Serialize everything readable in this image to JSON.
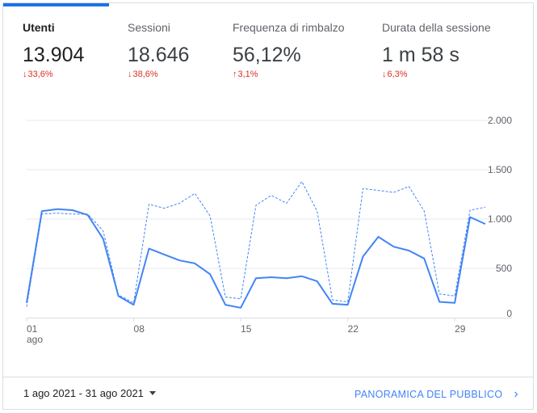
{
  "metrics": [
    {
      "label": "Utenti",
      "value": "13.904",
      "change": "33,6%",
      "direction": "down"
    },
    {
      "label": "Sessioni",
      "value": "18.646",
      "change": "38,6%",
      "direction": "down"
    },
    {
      "label": "Frequenza di rimbalzo",
      "value": "56,12%",
      "change": "3,1%",
      "direction": "up"
    },
    {
      "label": "Durata della sessione",
      "value": "1 m 58 s",
      "change": "6,3%",
      "direction": "down"
    }
  ],
  "icons": {
    "down": "arrow-down-icon",
    "up": "arrow-up-icon",
    "dropdown": "caret-down-icon",
    "next": "chevron-right-icon"
  },
  "colors": {
    "accent": "#1a73e8",
    "line": "#4285f4",
    "negative": "#d93025"
  },
  "footer": {
    "date_range": "1 ago 2021 - 31 ago 2021",
    "overview_link": "PANORAMICA DEL PUBBLICO"
  },
  "chart_data": {
    "type": "line",
    "x": [
      1,
      2,
      3,
      4,
      5,
      6,
      7,
      8,
      9,
      10,
      11,
      12,
      13,
      14,
      15,
      16,
      17,
      18,
      19,
      20,
      21,
      22,
      23,
      24,
      25,
      26,
      27,
      28,
      29,
      30,
      31
    ],
    "x_tick_labels": [
      {
        "x": 1,
        "line1": "01",
        "line2": "ago"
      },
      {
        "x": 8,
        "line1": "08",
        "line2": ""
      },
      {
        "x": 15,
        "line1": "15",
        "line2": ""
      },
      {
        "x": 22,
        "line1": "22",
        "line2": ""
      },
      {
        "x": 29,
        "line1": "29",
        "line2": ""
      }
    ],
    "y_ticks": [
      0,
      500,
      1000,
      1500,
      2000
    ],
    "y_tick_labels": [
      "0",
      "500",
      "1.000",
      "1.500",
      "2.000"
    ],
    "ylim": [
      0,
      2000
    ],
    "grid": true,
    "series": [
      {
        "style": "solid",
        "values": [
          150,
          1080,
          1100,
          1090,
          1040,
          800,
          220,
          130,
          700,
          640,
          580,
          550,
          440,
          130,
          100,
          400,
          410,
          400,
          420,
          370,
          140,
          130,
          620,
          820,
          720,
          680,
          600,
          160,
          150,
          1020,
          950
        ]
      },
      {
        "style": "dashed",
        "values": [
          110,
          1050,
          1060,
          1050,
          1050,
          880,
          230,
          150,
          1150,
          1110,
          1160,
          1260,
          1030,
          210,
          190,
          1140,
          1240,
          1160,
          1380,
          1080,
          180,
          160,
          1310,
          1290,
          1270,
          1330,
          1080,
          240,
          220,
          1090,
          1120
        ]
      }
    ]
  }
}
